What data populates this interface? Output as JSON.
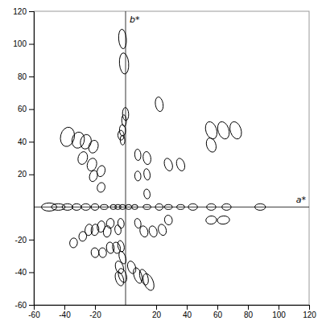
{
  "chart_data": {
    "type": "ellipse",
    "xlabel": "a*",
    "ylabel": "b*",
    "xlim": [
      -60,
      120
    ],
    "ylim": [
      -60,
      120
    ],
    "xticks": [
      -60,
      -40,
      -20,
      20,
      40,
      60,
      80,
      100,
      120
    ],
    "yticks": [
      -60,
      -40,
      -20,
      20,
      40,
      60,
      80,
      100,
      120
    ],
    "color": "black",
    "ellipses": [
      {
        "x": -2,
        "y": 103,
        "width": 5,
        "height": 12,
        "angle": 5
      },
      {
        "x": -1,
        "y": 88,
        "width": 6,
        "height": 13,
        "angle": 5
      },
      {
        "x": 0,
        "y": 57,
        "width": 4,
        "height": 8,
        "angle": 3
      },
      {
        "x": -1,
        "y": 53,
        "width": 3,
        "height": 7,
        "angle": 3
      },
      {
        "x": -2,
        "y": 47,
        "width": 4,
        "height": 7,
        "angle": 3
      },
      {
        "x": -3,
        "y": 44,
        "width": 4,
        "height": 6,
        "angle": 3
      },
      {
        "x": -2,
        "y": 41,
        "width": 3,
        "height": 6,
        "angle": 3
      },
      {
        "x": -38,
        "y": 43,
        "width": 9,
        "height": 12,
        "angle": -15
      },
      {
        "x": -31,
        "y": 41,
        "width": 8,
        "height": 10,
        "angle": -15
      },
      {
        "x": -26,
        "y": 40,
        "width": 7,
        "height": 9,
        "angle": -15
      },
      {
        "x": -21,
        "y": 37,
        "width": 6,
        "height": 8,
        "angle": -20
      },
      {
        "x": -28,
        "y": 30,
        "width": 6,
        "height": 8,
        "angle": -20
      },
      {
        "x": -22,
        "y": 26,
        "width": 6,
        "height": 8,
        "angle": -20
      },
      {
        "x": -16,
        "y": 22,
        "width": 5,
        "height": 7,
        "angle": -20
      },
      {
        "x": -21,
        "y": 19,
        "width": 5,
        "height": 7,
        "angle": -20
      },
      {
        "x": -16,
        "y": 12,
        "width": 5,
        "height": 6,
        "angle": -20
      },
      {
        "x": 22,
        "y": 63,
        "width": 5,
        "height": 9,
        "angle": 10
      },
      {
        "x": 14,
        "y": 30,
        "width": 5,
        "height": 8,
        "angle": 10
      },
      {
        "x": 14,
        "y": 20,
        "width": 4,
        "height": 7,
        "angle": 10
      },
      {
        "x": 14,
        "y": 8,
        "width": 4,
        "height": 6,
        "angle": 10
      },
      {
        "x": 8,
        "y": 32,
        "width": 4,
        "height": 7,
        "angle": 5
      },
      {
        "x": 8,
        "y": 19,
        "width": 4,
        "height": 6,
        "angle": 5
      },
      {
        "x": 28,
        "y": 26,
        "width": 5,
        "height": 8,
        "angle": 20
      },
      {
        "x": 36,
        "y": 26,
        "width": 5,
        "height": 8,
        "angle": 20
      },
      {
        "x": 56,
        "y": 47,
        "width": 7,
        "height": 11,
        "angle": 20
      },
      {
        "x": 64,
        "y": 47,
        "width": 7,
        "height": 11,
        "angle": 20
      },
      {
        "x": 72,
        "y": 47,
        "width": 7,
        "height": 11,
        "angle": 20
      },
      {
        "x": 56,
        "y": 38,
        "width": 6,
        "height": 9,
        "angle": 20
      },
      {
        "x": -50,
        "y": 0,
        "width": 10,
        "height": 5,
        "angle": 0
      },
      {
        "x": -44,
        "y": 0,
        "width": 9,
        "height": 4,
        "angle": 0
      },
      {
        "x": -38,
        "y": 0,
        "width": 7,
        "height": 4,
        "angle": 0
      },
      {
        "x": -32,
        "y": 0,
        "width": 6,
        "height": 4,
        "angle": 0
      },
      {
        "x": -26,
        "y": 0,
        "width": 6,
        "height": 4,
        "angle": 0
      },
      {
        "x": -20,
        "y": 0,
        "width": 5,
        "height": 4,
        "angle": 0
      },
      {
        "x": -14,
        "y": 0,
        "width": 5,
        "height": 3,
        "angle": 0
      },
      {
        "x": -8,
        "y": 0,
        "width": 4,
        "height": 3,
        "angle": 0
      },
      {
        "x": -5,
        "y": 0,
        "width": 4,
        "height": 3,
        "angle": 0
      },
      {
        "x": -2,
        "y": 0,
        "width": 4,
        "height": 3,
        "angle": 0
      },
      {
        "x": 2,
        "y": 0,
        "width": 4,
        "height": 3,
        "angle": 0
      },
      {
        "x": 6,
        "y": 0,
        "width": 4,
        "height": 3,
        "angle": 0
      },
      {
        "x": 14,
        "y": 0,
        "width": 5,
        "height": 3,
        "angle": 0
      },
      {
        "x": 22,
        "y": 0,
        "width": 5,
        "height": 4,
        "angle": 0
      },
      {
        "x": 28,
        "y": 0,
        "width": 5,
        "height": 3,
        "angle": 0
      },
      {
        "x": 36,
        "y": 0,
        "width": 5,
        "height": 3,
        "angle": 0
      },
      {
        "x": 44,
        "y": 0,
        "width": 6,
        "height": 4,
        "angle": 0
      },
      {
        "x": 56,
        "y": 0,
        "width": 6,
        "height": 4,
        "angle": 0
      },
      {
        "x": 66,
        "y": 0,
        "width": 6,
        "height": 4,
        "angle": 0
      },
      {
        "x": 88,
        "y": 0,
        "width": 7,
        "height": 4,
        "angle": 0
      },
      {
        "x": -3,
        "y": -10,
        "width": 4,
        "height": 6,
        "angle": 10
      },
      {
        "x": -5,
        "y": -14,
        "width": 4,
        "height": 6,
        "angle": 10
      },
      {
        "x": -10,
        "y": -10,
        "width": 5,
        "height": 6,
        "angle": -10
      },
      {
        "x": -12,
        "y": -15,
        "width": 5,
        "height": 7,
        "angle": -10
      },
      {
        "x": -16,
        "y": -12,
        "width": 5,
        "height": 7,
        "angle": -10
      },
      {
        "x": -20,
        "y": -14,
        "width": 5,
        "height": 7,
        "angle": -10
      },
      {
        "x": -24,
        "y": -14,
        "width": 5,
        "height": 7,
        "angle": -10
      },
      {
        "x": -28,
        "y": -18,
        "width": 5,
        "height": 6,
        "angle": -10
      },
      {
        "x": -34,
        "y": -22,
        "width": 5,
        "height": 6,
        "angle": -10
      },
      {
        "x": -3,
        "y": -24,
        "width": 4,
        "height": 7,
        "angle": 15
      },
      {
        "x": -6,
        "y": -25,
        "width": 5,
        "height": 7,
        "angle": 15
      },
      {
        "x": -10,
        "y": -25,
        "width": 5,
        "height": 7,
        "angle": 10
      },
      {
        "x": -15,
        "y": -28,
        "width": 5,
        "height": 6,
        "angle": 10
      },
      {
        "x": -20,
        "y": -28,
        "width": 5,
        "height": 6,
        "angle": 10
      },
      {
        "x": -2,
        "y": -31,
        "width": 4,
        "height": 8,
        "angle": 20
      },
      {
        "x": -4,
        "y": -37,
        "width": 5,
        "height": 8,
        "angle": 20
      },
      {
        "x": -2,
        "y": -42,
        "width": 5,
        "height": 9,
        "angle": 20
      },
      {
        "x": -4,
        "y": -44,
        "width": 5,
        "height": 9,
        "angle": 20
      },
      {
        "x": 4,
        "y": -37,
        "width": 5,
        "height": 8,
        "angle": 20
      },
      {
        "x": 8,
        "y": -42,
        "width": 5,
        "height": 10,
        "angle": 20
      },
      {
        "x": 12,
        "y": -43,
        "width": 5,
        "height": 10,
        "angle": 20
      },
      {
        "x": 15,
        "y": -46,
        "width": 6,
        "height": 11,
        "angle": 25
      },
      {
        "x": 12,
        "y": -15,
        "width": 5,
        "height": 7,
        "angle": 20
      },
      {
        "x": 18,
        "y": -15,
        "width": 5,
        "height": 7,
        "angle": 20
      },
      {
        "x": 24,
        "y": -14,
        "width": 5,
        "height": 7,
        "angle": 20
      },
      {
        "x": 8,
        "y": -10,
        "width": 4,
        "height": 6,
        "angle": 15
      },
      {
        "x": 28,
        "y": -8,
        "width": 5,
        "height": 6,
        "angle": 15
      },
      {
        "x": 56,
        "y": -8,
        "width": 7,
        "height": 5,
        "angle": 5
      },
      {
        "x": 64,
        "y": -8,
        "width": 8,
        "height": 5,
        "angle": 5
      }
    ]
  }
}
